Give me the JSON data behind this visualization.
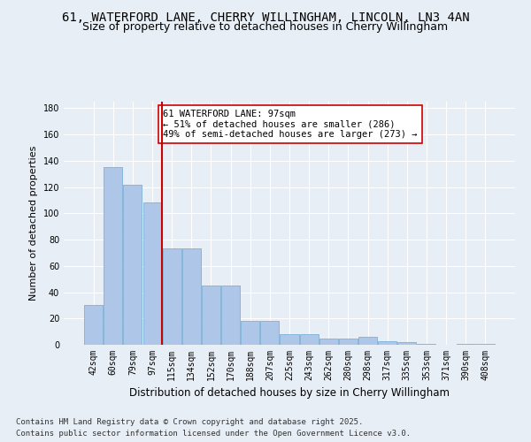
{
  "title1": "61, WATERFORD LANE, CHERRY WILLINGHAM, LINCOLN, LN3 4AN",
  "title2": "Size of property relative to detached houses in Cherry Willingham",
  "xlabel": "Distribution of detached houses by size in Cherry Willingham",
  "ylabel": "Number of detached properties",
  "categories": [
    "42sqm",
    "60sqm",
    "79sqm",
    "97sqm",
    "115sqm",
    "134sqm",
    "152sqm",
    "170sqm",
    "188sqm",
    "207sqm",
    "225sqm",
    "243sqm",
    "262sqm",
    "280sqm",
    "298sqm",
    "317sqm",
    "335sqm",
    "353sqm",
    "371sqm",
    "390sqm",
    "408sqm"
  ],
  "values": [
    30,
    135,
    122,
    108,
    73,
    73,
    45,
    45,
    18,
    18,
    8,
    8,
    5,
    5,
    6,
    3,
    2,
    1,
    0,
    1,
    1
  ],
  "bar_color": "#aec6e8",
  "bar_edge_color": "#6aaad4",
  "vline_index": 3,
  "vline_color": "#cc0000",
  "annotation_text": "61 WATERFORD LANE: 97sqm\n← 51% of detached houses are smaller (286)\n49% of semi-detached houses are larger (273) →",
  "annotation_box_color": "#ffffff",
  "annotation_box_edge": "#cc0000",
  "ylim": [
    0,
    185
  ],
  "yticks": [
    0,
    20,
    40,
    60,
    80,
    100,
    120,
    140,
    160,
    180
  ],
  "bg_color": "#e8eef5",
  "plot_bg_color": "#e8eef5",
  "footer1": "Contains HM Land Registry data © Crown copyright and database right 2025.",
  "footer2": "Contains public sector information licensed under the Open Government Licence v3.0.",
  "title1_fontsize": 10,
  "title2_fontsize": 9,
  "xlabel_fontsize": 8.5,
  "ylabel_fontsize": 8,
  "tick_fontsize": 7,
  "annotation_fontsize": 7.5,
  "footer_fontsize": 6.5
}
